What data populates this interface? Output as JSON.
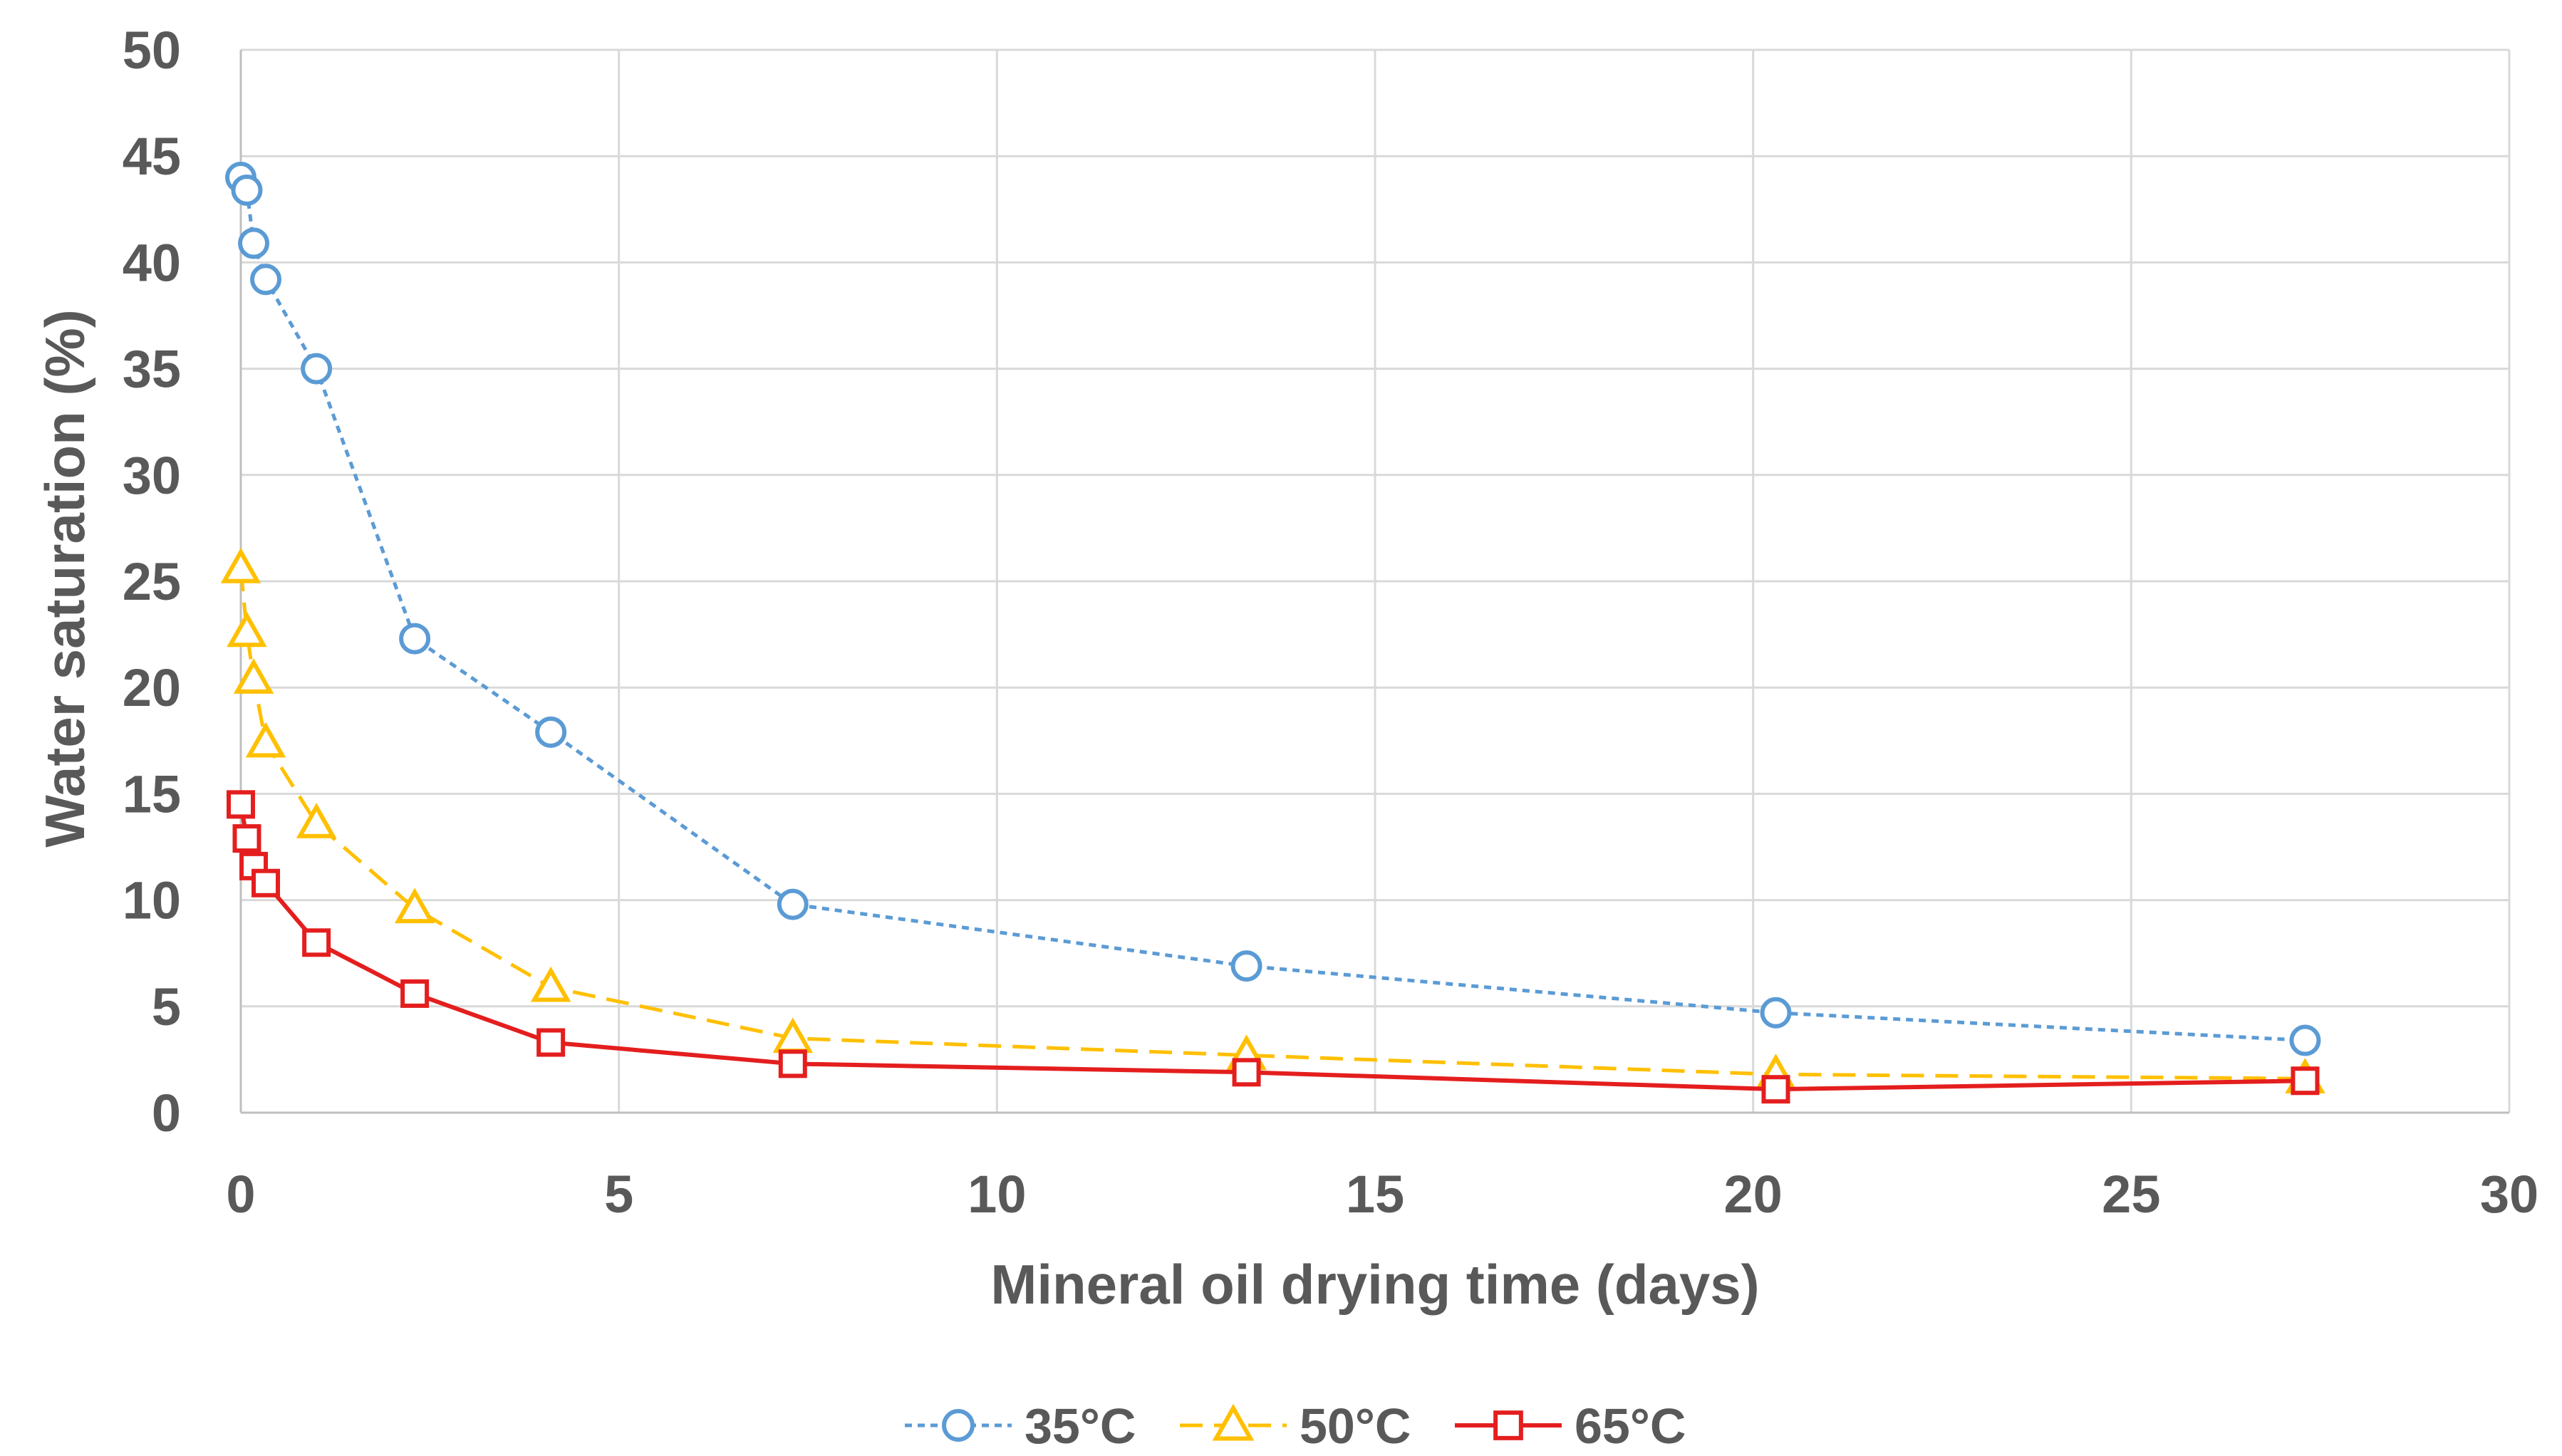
{
  "chart_data": {
    "type": "line",
    "title": "",
    "xlabel": "Mineral oil drying time (days)",
    "ylabel": "Water saturation (%)",
    "xlim": [
      0,
      30
    ],
    "ylim": [
      0,
      50
    ],
    "xticks": [
      0,
      5,
      10,
      15,
      20,
      25,
      30
    ],
    "yticks": [
      0,
      5,
      10,
      15,
      20,
      25,
      30,
      35,
      40,
      45,
      50
    ],
    "grid": true,
    "legend_position": "bottom-center",
    "series": [
      {
        "name": "35°C",
        "color": "#5B9BD5",
        "line_style": "dotted",
        "marker": "circle",
        "x": [
          0,
          0.08,
          0.17,
          0.33,
          1.0,
          2.3,
          4.1,
          7.3,
          13.3,
          20.3,
          27.3
        ],
        "y": [
          44.0,
          43.4,
          40.9,
          39.2,
          35.0,
          22.3,
          17.9,
          9.8,
          6.9,
          4.7,
          3.4
        ]
      },
      {
        "name": "50°C",
        "color": "#FFC000",
        "line_style": "dashed",
        "marker": "triangle",
        "x": [
          0,
          0.08,
          0.17,
          0.33,
          1.0,
          2.3,
          4.1,
          7.3,
          13.3,
          20.3,
          27.3
        ],
        "y": [
          25.6,
          22.6,
          20.4,
          17.4,
          13.6,
          9.6,
          5.9,
          3.5,
          2.7,
          1.8,
          1.6
        ]
      },
      {
        "name": "65°C",
        "color": "#E41E1E",
        "line_style": "solid",
        "marker": "square",
        "x": [
          0,
          0.08,
          0.17,
          0.33,
          1.0,
          2.3,
          4.1,
          7.3,
          13.3,
          20.3,
          27.3
        ],
        "y": [
          14.5,
          12.9,
          11.6,
          10.8,
          8.0,
          5.6,
          3.3,
          2.3,
          1.9,
          1.1,
          1.5
        ]
      }
    ]
  }
}
